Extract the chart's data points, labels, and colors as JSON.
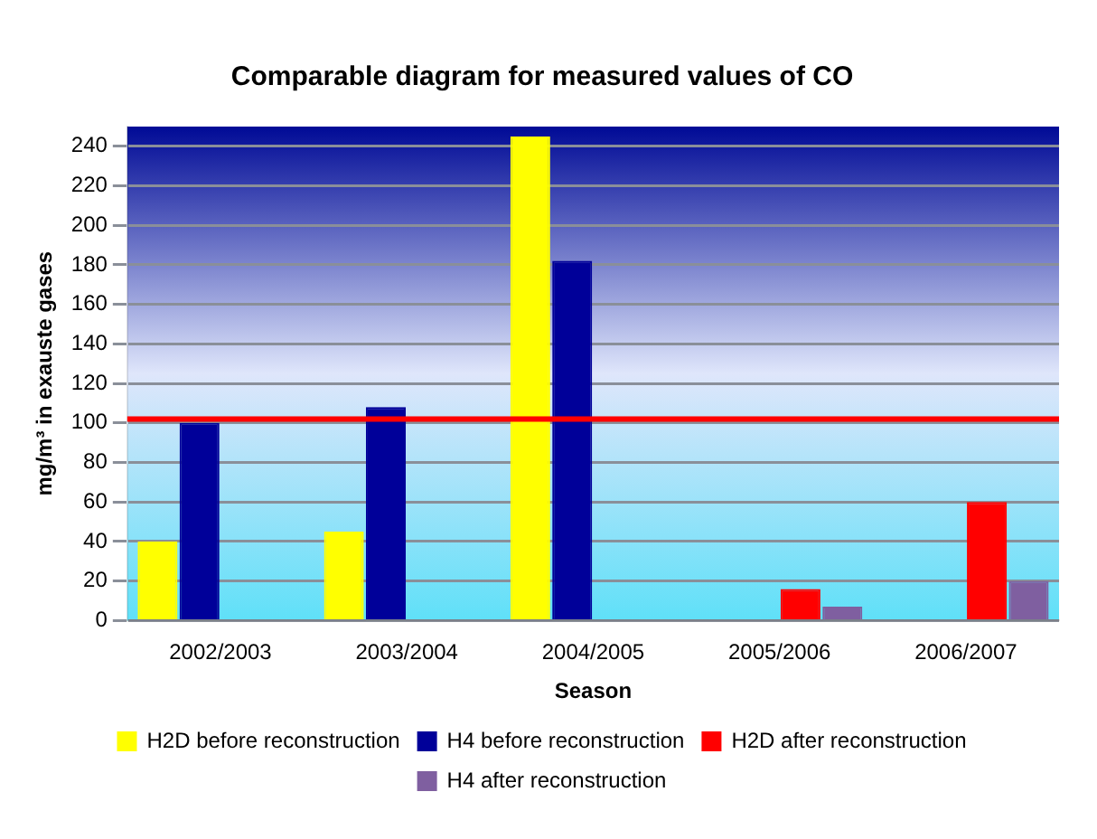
{
  "chart_data": {
    "type": "bar",
    "title": "Comparable diagram for measured values of CO",
    "xlabel": "Season",
    "ylabel": "mg/m³ in exauste gases",
    "categories": [
      "2002/2003",
      "2003/2004",
      "2004/2005",
      "2005/2006",
      "2006/2007"
    ],
    "series": [
      {
        "name": "H2D before reconstruction",
        "color": "#ffff00",
        "values": [
          40,
          45,
          245,
          null,
          null
        ]
      },
      {
        "name": "H4 before reconstruction",
        "color": "#000099",
        "values": [
          100,
          108,
          182,
          null,
          null
        ]
      },
      {
        "name": "H2D after reconstruction",
        "color": "#ff0000",
        "values": [
          null,
          null,
          null,
          16,
          60
        ]
      },
      {
        "name": "H4 after reconstruction",
        "color": "#7f5fa0",
        "values": [
          null,
          null,
          null,
          7,
          20
        ]
      }
    ],
    "ylim": [
      0,
      250
    ],
    "yticks": [
      0,
      20,
      40,
      60,
      80,
      100,
      120,
      140,
      160,
      180,
      200,
      220,
      240
    ],
    "ref_lines": [
      {
        "axis": "y",
        "value": 102,
        "color": "#ff0000"
      }
    ],
    "grid": "y",
    "legend": "bottom"
  }
}
